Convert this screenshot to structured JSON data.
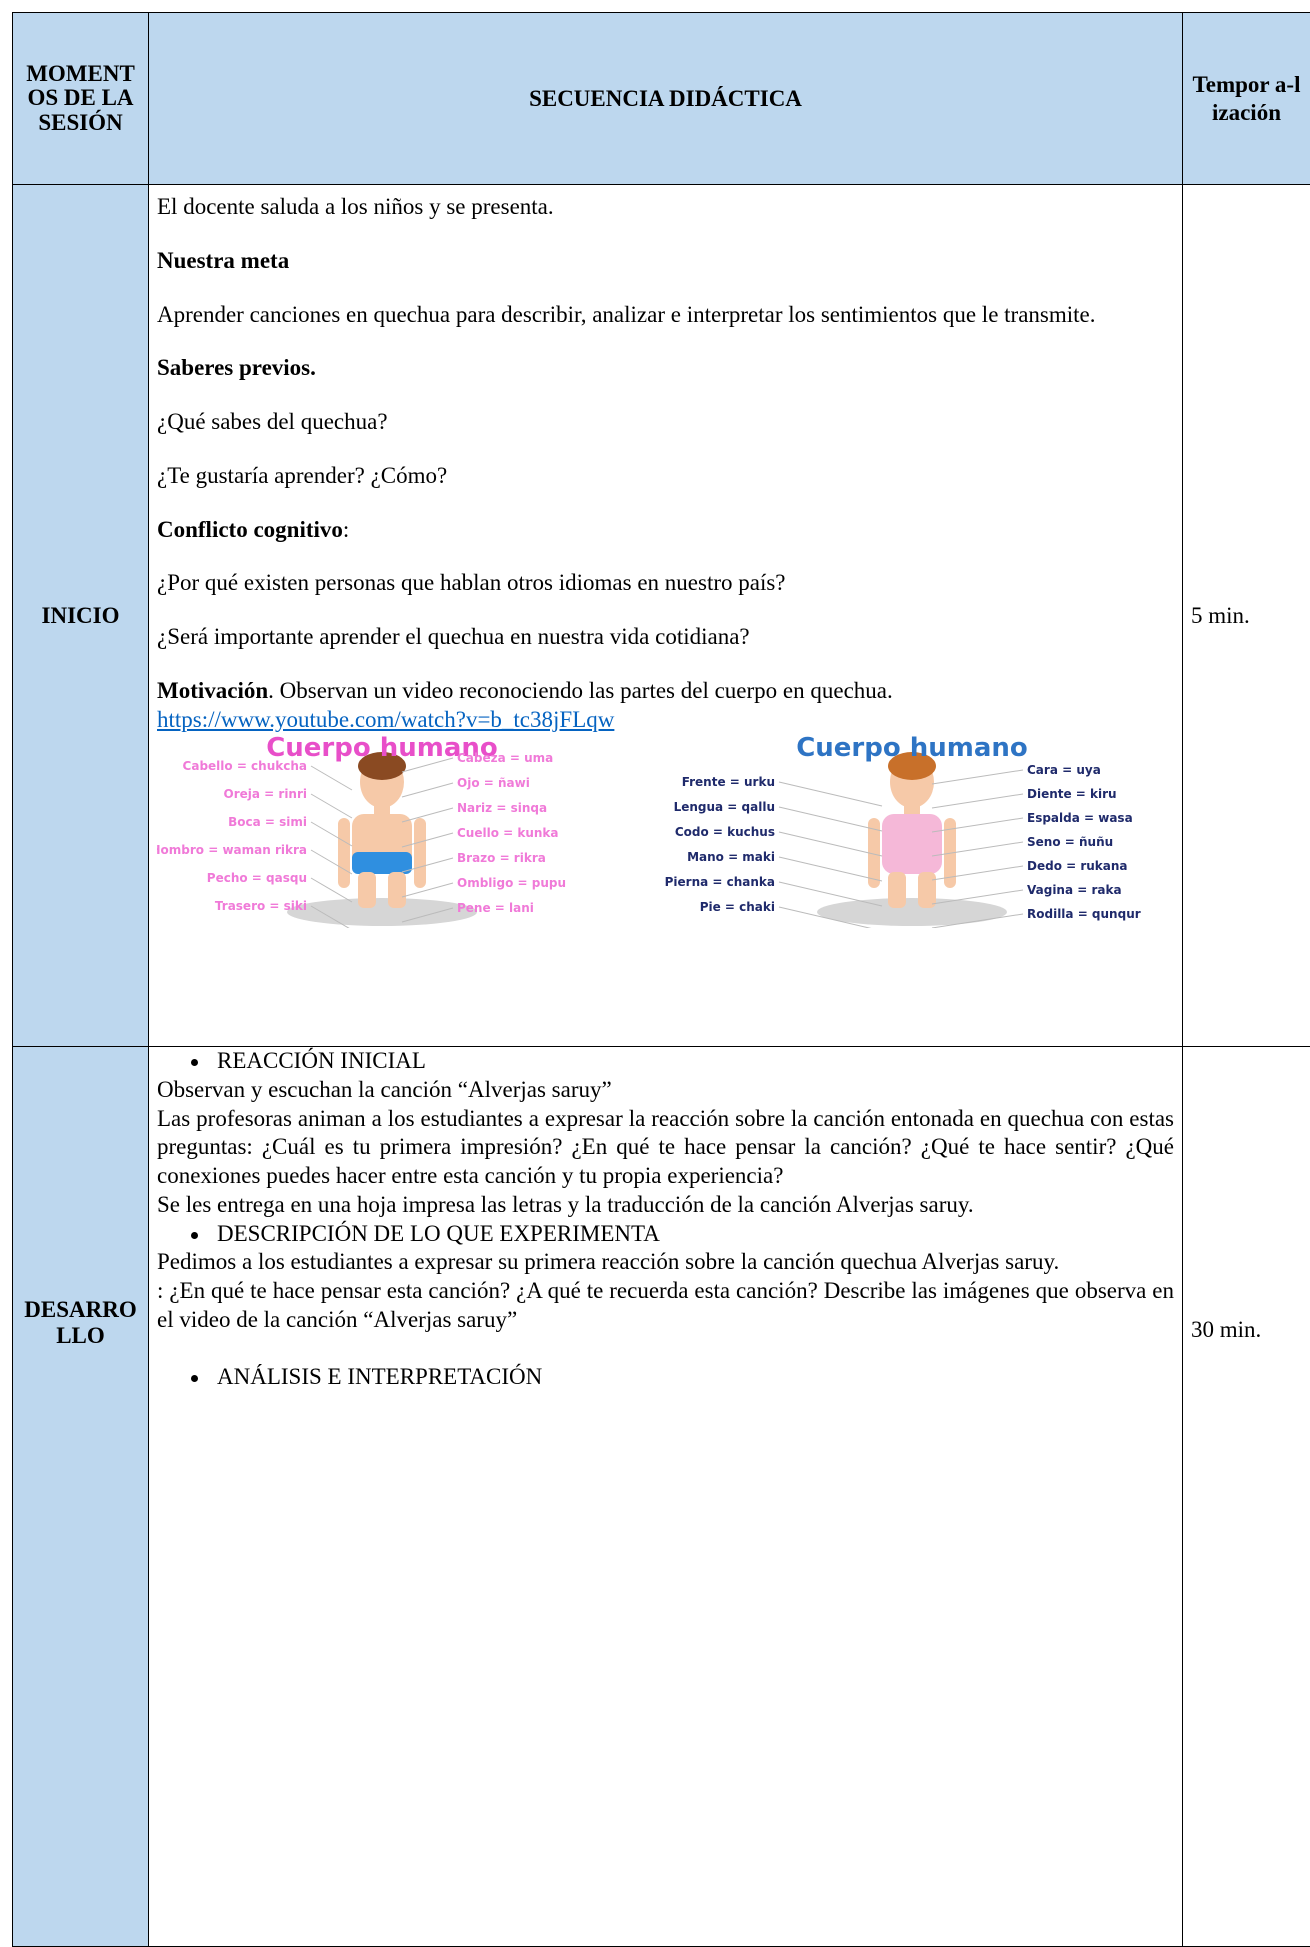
{
  "header": {
    "moments": "MOMENTOS DE LA SESIÓN",
    "sequence": "SECUENCIA DIDÁCTICA",
    "time": "Tempor a-lización"
  },
  "inicio": {
    "moment": "INICIO",
    "time": "5 min.",
    "content": [
      {
        "text": "El docente saluda a los niños y se presenta."
      },
      {
        "heading": "Nuestra meta"
      },
      {
        "text": "Aprender canciones en quechua para describir, analizar e interpretar los sentimientos que le transmite."
      },
      {
        "heading": "Saberes previos."
      },
      {
        "text": "¿Qué sabes del quechua?"
      },
      {
        "text": "¿Te gustaría aprender? ¿Cómo?"
      },
      {
        "heading": "Conflicto cognitivo",
        "text": ":"
      },
      {
        "text": "¿Por qué existen personas que hablan otros idiomas en nuestro país?"
      },
      {
        "text": "¿Será importante aprender el quechua en nuestra vida cotidiana?"
      },
      {
        "heading": "Motivación",
        "text": ". Observan un video reconociendo las partes del cuerpo en quechua.",
        "link": "https://www.youtube.com/watch?v=b_tc38jFLqw"
      }
    ],
    "figures": [
      {
        "title": "Cuerpo humano",
        "left": [
          "Cabello = chukcha",
          "Oreja = rinri",
          "Boca = simi",
          "Hombro = waman rikra",
          "Pecho = qasqu",
          "Trasero = siki"
        ],
        "right": [
          "Cabeza = uma",
          "Ojo = ñawi",
          "Nariz = sinqa",
          "Cuello = kunka",
          "Brazo = rikra",
          "Ombligo = pupu",
          "Pene = lani"
        ]
      },
      {
        "title": "Cuerpo humano",
        "left": [
          "Frente = urku",
          "Lengua = qallu",
          "Codo = kuchus",
          "Mano = maki",
          "Pierna = chanka",
          "Pie = chaki"
        ],
        "right": [
          "Cara = uya",
          "Diente = kiru",
          "Espalda = wasa",
          "Seno = ñuñu",
          "Dedo = rukana",
          "Vagina = raka",
          "Rodilla = qunqur"
        ]
      }
    ]
  },
  "desarrollo": {
    "moment": "DESARROLLO",
    "time": "30 min.",
    "content": [
      {
        "bullet": "REACCIÓN INICIAL"
      },
      {
        "line": "Observan y escuchan la canción “Alverjas saruy”"
      },
      {
        "line": "Las profesoras animan a los estudiantes a expresar la reacción sobre la canción entonada en quechua con estas preguntas: ¿Cuál es tu primera impresión? ¿En qué te hace pensar la canción?  ¿Qué te hace sentir? ¿Qué conexiones puedes hacer entre esta canción y tu propia experiencia?"
      },
      {
        "line": "Se les entrega en una hoja impresa las letras y la traducción de la canción Alverjas saruy."
      },
      {
        "bullet": "DESCRIPCIÓN DE LO QUE EXPERIMENTA"
      },
      {
        "line": "Pedimos a los estudiantes a expresar su primera reacción sobre la canción quechua Alverjas saruy."
      },
      {
        "line": " : ¿En qué te hace pensar  esta canción? ¿A qué te recuerda esta canción? Describe las imágenes que observa en el video de la canción “Alverjas saruy”"
      },
      {
        "bullet": "ANÁLISIS E INTERPRETACIÓN"
      }
    ]
  }
}
